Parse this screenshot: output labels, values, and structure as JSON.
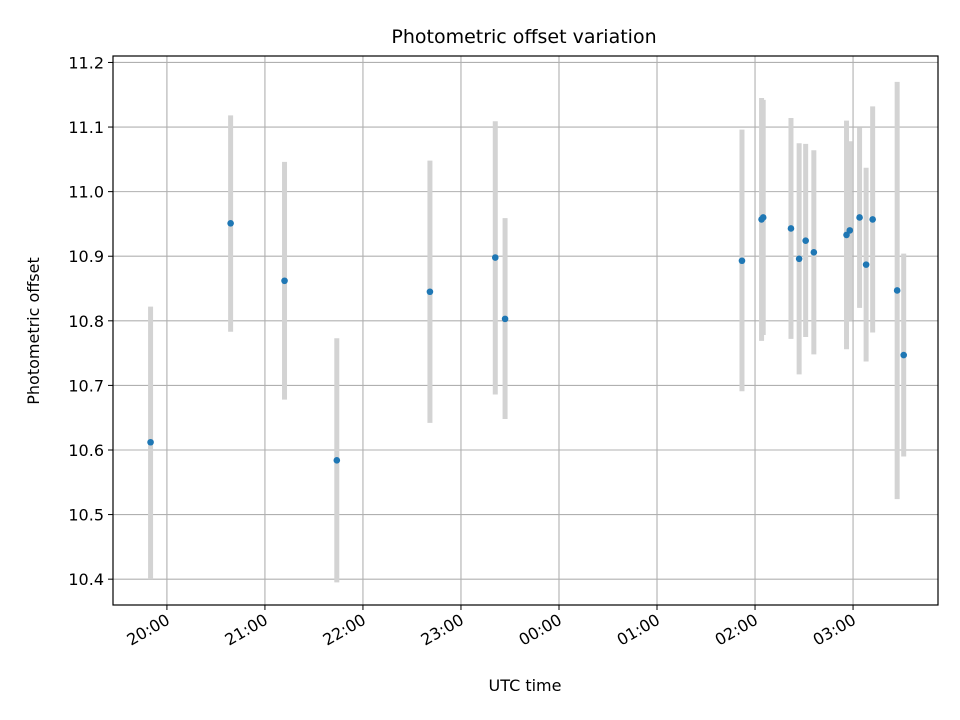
{
  "chart_data": {
    "type": "scatter",
    "title": "Photometric offset variation",
    "xlabel": "UTC time",
    "ylabel": "Photometric offset",
    "x_tick_labels": [
      "20:00",
      "21:00",
      "22:00",
      "23:00",
      "00:00",
      "01:00",
      "02:00",
      "03:00"
    ],
    "y_ticks": [
      10.4,
      10.5,
      10.6,
      10.7,
      10.8,
      10.9,
      11.0,
      11.1,
      11.2
    ],
    "ylim": [
      10.36,
      11.21
    ],
    "xlim": [
      "19:27",
      "03:52"
    ],
    "grid": true,
    "colors": {
      "point": "#1f77b4",
      "errorbar": "#d3d3d3",
      "grid": "#b0b0b0"
    },
    "points": [
      {
        "time": "19:50",
        "value": 10.612,
        "err_low": 10.4,
        "err_high": 10.822
      },
      {
        "time": "20:39",
        "value": 10.951,
        "err_low": 10.783,
        "err_high": 11.118
      },
      {
        "time": "21:12",
        "value": 10.862,
        "err_low": 10.678,
        "err_high": 11.046
      },
      {
        "time": "21:44",
        "value": 10.584,
        "err_low": 10.395,
        "err_high": 10.773
      },
      {
        "time": "22:41",
        "value": 10.845,
        "err_low": 10.642,
        "err_high": 11.048
      },
      {
        "time": "23:21",
        "value": 10.898,
        "err_low": 10.686,
        "err_high": 11.109
      },
      {
        "time": "23:27",
        "value": 10.803,
        "err_low": 10.648,
        "err_high": 10.959
      },
      {
        "time": "01:52",
        "value": 10.893,
        "err_low": 10.691,
        "err_high": 11.096
      },
      {
        "time": "02:04",
        "value": 10.957,
        "err_low": 10.769,
        "err_high": 11.145
      },
      {
        "time": "02:05",
        "value": 10.96,
        "err_low": 10.778,
        "err_high": 11.142
      },
      {
        "time": "02:22",
        "value": 10.943,
        "err_low": 10.772,
        "err_high": 11.114
      },
      {
        "time": "02:27",
        "value": 10.896,
        "err_low": 10.717,
        "err_high": 11.075
      },
      {
        "time": "02:31",
        "value": 10.924,
        "err_low": 10.775,
        "err_high": 11.074
      },
      {
        "time": "02:36",
        "value": 10.906,
        "err_low": 10.748,
        "err_high": 11.064
      },
      {
        "time": "02:56",
        "value": 10.933,
        "err_low": 10.756,
        "err_high": 11.11
      },
      {
        "time": "02:58",
        "value": 10.94,
        "err_low": 10.8,
        "err_high": 11.078
      },
      {
        "time": "03:04",
        "value": 10.96,
        "err_low": 10.82,
        "err_high": 11.099
      },
      {
        "time": "03:08",
        "value": 10.887,
        "err_low": 10.737,
        "err_high": 11.037
      },
      {
        "time": "03:12",
        "value": 10.957,
        "err_low": 10.782,
        "err_high": 11.132
      },
      {
        "time": "03:27",
        "value": 10.847,
        "err_low": 10.524,
        "err_high": 11.17
      },
      {
        "time": "03:31",
        "value": 10.747,
        "err_low": 10.59,
        "err_high": 10.904
      }
    ]
  }
}
